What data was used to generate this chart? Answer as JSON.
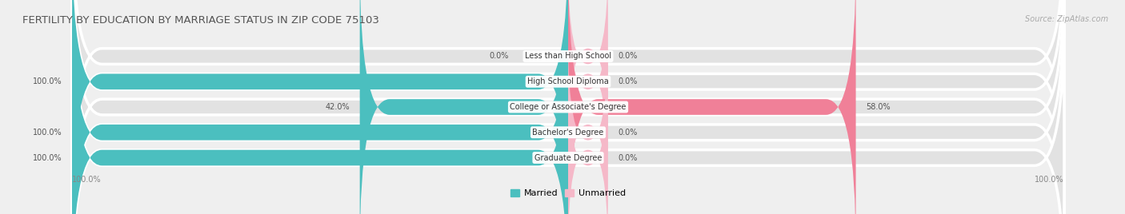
{
  "title": "FERTILITY BY EDUCATION BY MARRIAGE STATUS IN ZIP CODE 75103",
  "source": "Source: ZipAtlas.com",
  "categories": [
    "Less than High School",
    "High School Diploma",
    "College or Associate's Degree",
    "Bachelor's Degree",
    "Graduate Degree"
  ],
  "married": [
    0.0,
    100.0,
    42.0,
    100.0,
    100.0
  ],
  "unmarried": [
    0.0,
    0.0,
    58.0,
    0.0,
    0.0
  ],
  "married_color": "#4BBFBF",
  "unmarried_color": "#F08098",
  "unmarried_small_color": "#F5B8C8",
  "bg_color": "#efefef",
  "bar_bg_color": "#e2e2e2",
  "bar_bg_edgecolor": "#ffffff",
  "title_fontsize": 9.5,
  "source_fontsize": 7,
  "label_fontsize": 7,
  "cat_fontsize": 7,
  "bar_height": 0.62,
  "xlim_left": -110,
  "xlim_right": 110,
  "axis_bottom_left": "100.0%",
  "axis_bottom_right": "100.0%"
}
